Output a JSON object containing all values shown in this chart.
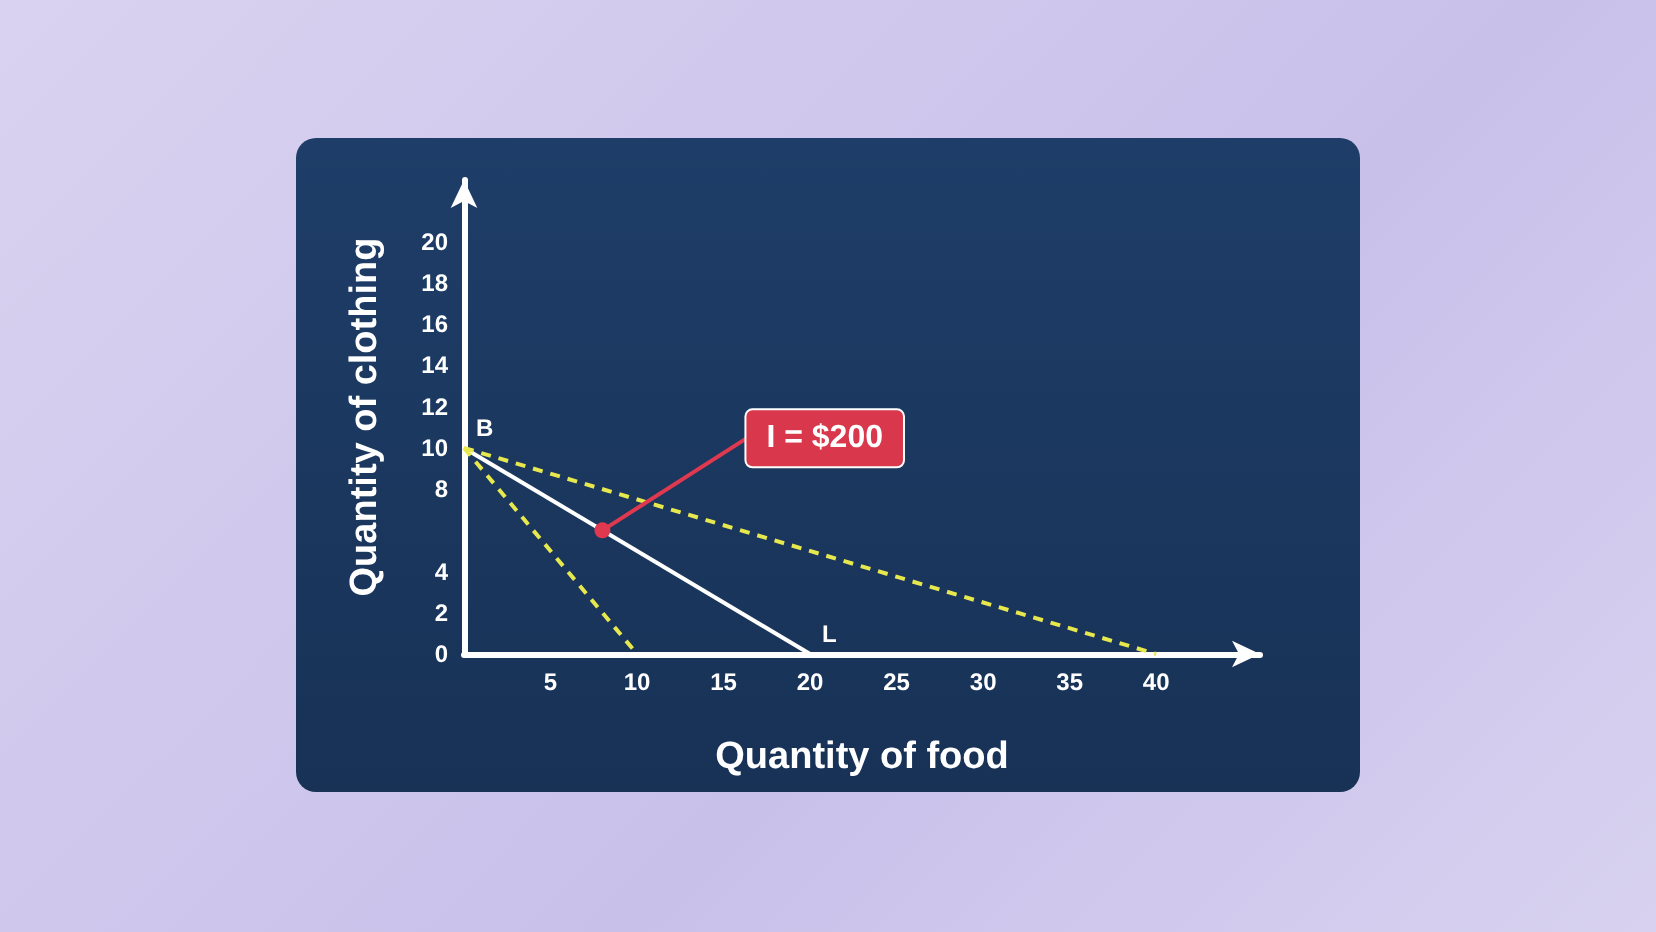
{
  "chart_data": {
    "type": "line",
    "xlabel": "Quantity of food",
    "ylabel": "Quantity of clothing",
    "xlim": [
      0,
      46
    ],
    "xticks": [
      5,
      10,
      15,
      20,
      25,
      30,
      35,
      40
    ],
    "ylim": [
      0,
      23
    ],
    "yticks": [
      0,
      2,
      4,
      8,
      10,
      12,
      14,
      16,
      18,
      20
    ],
    "grid": false,
    "marker": "none",
    "series": [
      {
        "color": "#ffffff",
        "line_style": "solid",
        "x": [
          0,
          20
        ],
        "values": [
          10,
          0
        ]
      },
      {
        "color": "#e6e84e",
        "line_style": "dashed",
        "x": [
          0,
          10
        ],
        "values": [
          10,
          0
        ]
      },
      {
        "color": "#e6e84e",
        "line_style": "dashed",
        "x": [
          0,
          40
        ],
        "values": [
          10,
          0
        ]
      }
    ],
    "annotations": [
      {
        "text": "I = $200",
        "x": 8,
        "y": 6
      },
      {
        "text": "B",
        "x": 0,
        "y": 10
      },
      {
        "text": "L",
        "x": 20,
        "y": 0
      }
    ]
  }
}
